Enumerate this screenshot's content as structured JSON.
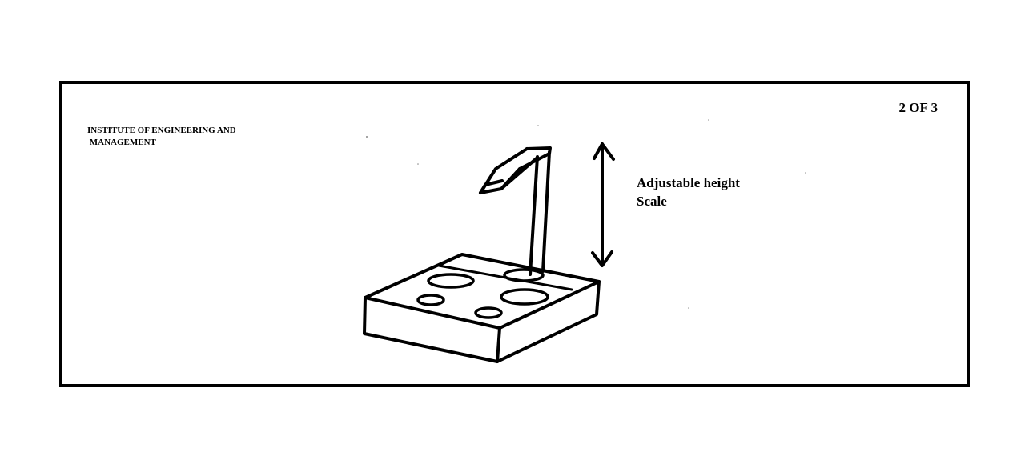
{
  "header": {
    "institute": "INSTITUTE OF ENGINEERING AND\n MANAGEMENT",
    "sheet_number": "2 OF 3"
  },
  "annotation": {
    "line1": "Adjustable height",
    "line2": "Scale"
  },
  "colors": {
    "ink": "#000000",
    "paper": "#ffffff"
  }
}
